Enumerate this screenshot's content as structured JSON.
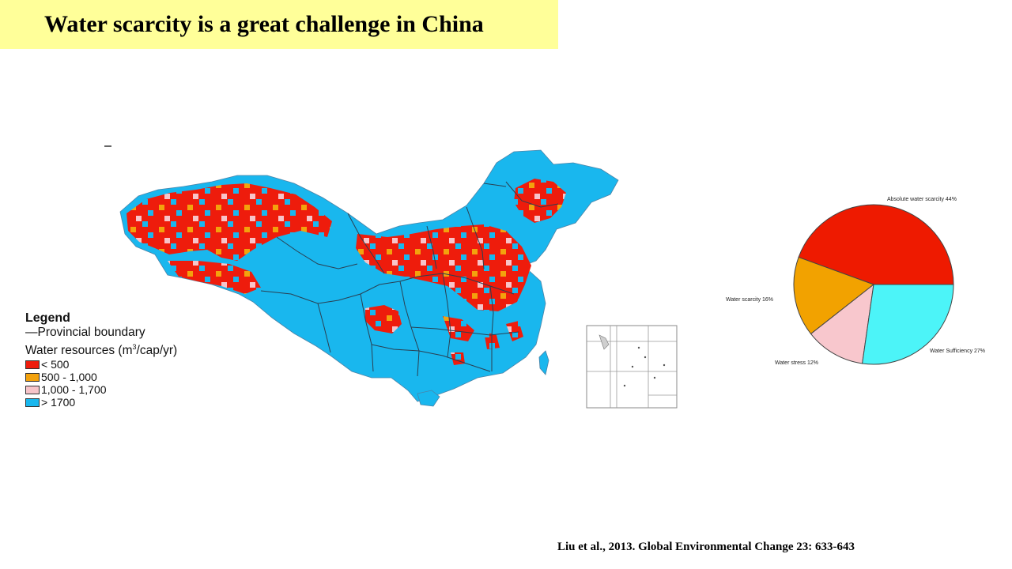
{
  "title": "Water scarcity is a great challenge in China",
  "citation": "Liu et al., 2013. Global Environmental Change 23: 633-643",
  "legend": {
    "title": "Legend",
    "boundary_label": "—Provincial boundary",
    "resources_prefix": "Water resources (m",
    "resources_superscript": "3",
    "resources_suffix": "/cap/yr)",
    "classes": [
      {
        "label": "< 500",
        "color": "#ee1c0c"
      },
      {
        "label": "500 - 1,000",
        "color": "#f3a20d"
      },
      {
        "label": "1,000 - 1,700",
        "color": "#f7c4c9"
      },
      {
        "label": "> 1700",
        "color": "#19b7ee"
      }
    ]
  },
  "chart_data": {
    "type": "pie",
    "slices": [
      {
        "label": "Absolute water scarcity 44%",
        "value": 44,
        "color": "#ee1a00"
      },
      {
        "label": "Water scarcity 16%",
        "value": 16,
        "color": "#f2a200"
      },
      {
        "label": "Water stress 12%",
        "value": 12,
        "color": "#f8c7cd"
      },
      {
        "label": "Water Sufficiency 27%",
        "value": 27,
        "color": "#4cf4f8"
      }
    ]
  }
}
